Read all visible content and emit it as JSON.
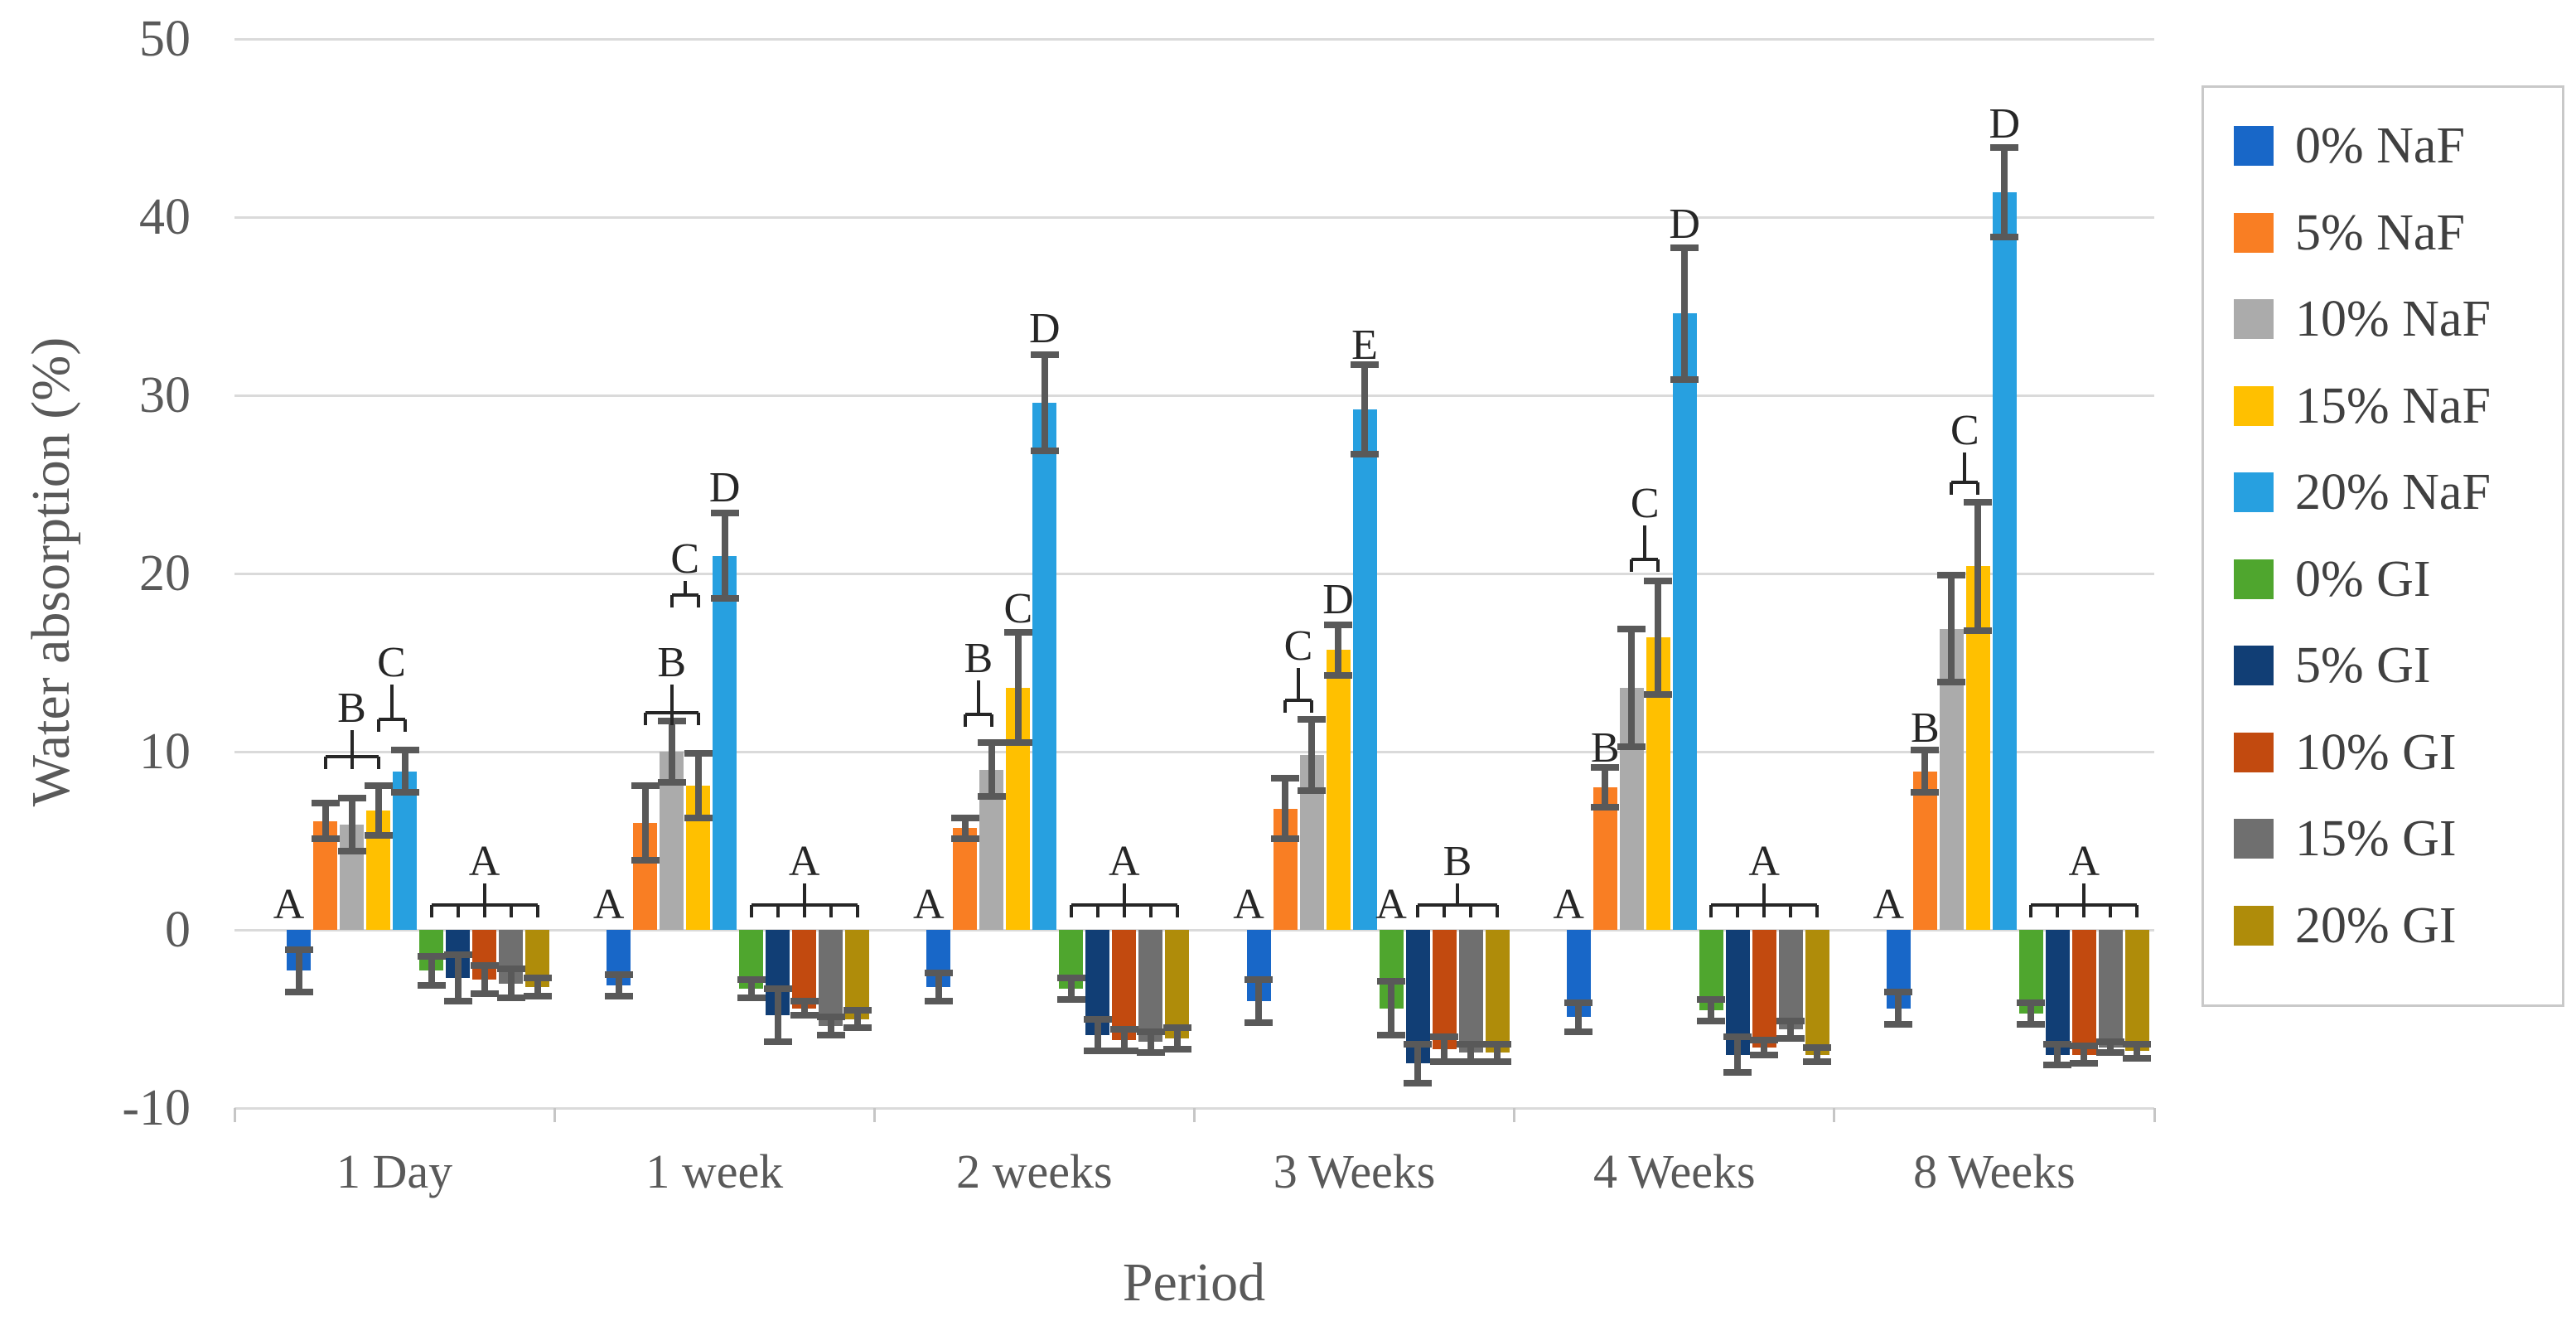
{
  "chart_data": {
    "type": "bar",
    "title": "",
    "xlabel": "Period",
    "ylabel": "Water absorption (%)",
    "ylim": [
      -10,
      50
    ],
    "y_ticks": [
      50,
      40,
      30,
      20,
      10,
      0,
      -10
    ],
    "grid": "horizontal",
    "legend_position": "right",
    "categories": [
      "1 Day",
      "1 week",
      "2 weeks",
      "3 Weeks",
      "4 Weeks",
      "8 Weeks"
    ],
    "series": [
      {
        "name": "0% NaF",
        "color": "#1867C8",
        "values": [
          -2.3,
          -3.1,
          -3.2,
          -4.0,
          -4.9,
          -4.4
        ],
        "errors": [
          1.2,
          0.6,
          0.8,
          1.2,
          0.8,
          0.9
        ]
      },
      {
        "name": "5% NaF",
        "color": "#F97E23",
        "values": [
          6.1,
          6.0,
          5.7,
          6.8,
          8.0,
          8.9
        ],
        "errors": [
          1.0,
          2.1,
          0.6,
          1.7,
          1.1,
          1.2
        ]
      },
      {
        "name": "10% NaF",
        "color": "#ABABAB",
        "values": [
          5.9,
          10.0,
          9.0,
          9.8,
          13.6,
          16.9
        ],
        "errors": [
          1.5,
          1.7,
          1.5,
          2.0,
          3.3,
          3.0
        ]
      },
      {
        "name": "15% NaF",
        "color": "#FFC000",
        "values": [
          6.7,
          8.1,
          13.6,
          15.7,
          16.4,
          20.4
        ],
        "errors": [
          1.4,
          1.8,
          3.1,
          1.4,
          3.2,
          3.6
        ]
      },
      {
        "name": "20% NaF",
        "color": "#27A0E0",
        "values": [
          8.9,
          21.0,
          29.6,
          29.2,
          34.6,
          41.4
        ],
        "errors": [
          1.2,
          2.4,
          2.7,
          2.5,
          3.7,
          2.5
        ]
      },
      {
        "name": "0% GI",
        "color": "#4FA62E",
        "values": [
          -2.3,
          -3.3,
          -3.3,
          -4.4,
          -4.5,
          -4.7
        ],
        "errors": [
          0.8,
          0.5,
          0.6,
          1.5,
          0.6,
          0.6
        ]
      },
      {
        "name": "5% GI",
        "color": "#113E75",
        "values": [
          -2.7,
          -4.8,
          -5.9,
          -7.5,
          -7.0,
          -7.0
        ],
        "errors": [
          1.3,
          1.5,
          0.9,
          1.1,
          1.0,
          0.6
        ]
      },
      {
        "name": "10% GI",
        "color": "#C24A0F",
        "values": [
          -2.8,
          -4.4,
          -6.2,
          -6.7,
          -6.6,
          -7.0
        ],
        "errors": [
          0.8,
          0.4,
          0.6,
          0.7,
          0.4,
          0.5
        ]
      },
      {
        "name": "15% GI",
        "color": "#6F6F6F",
        "values": [
          -3.0,
          -5.4,
          -6.3,
          -6.9,
          -5.6,
          -6.6
        ],
        "errors": [
          0.8,
          0.5,
          0.6,
          0.5,
          0.5,
          0.3
        ]
      },
      {
        "name": "20% GI",
        "color": "#AF8C0A",
        "values": [
          -3.2,
          -5.0,
          -6.1,
          -6.9,
          -7.0,
          -6.8
        ],
        "errors": [
          0.5,
          0.5,
          0.6,
          0.5,
          0.4,
          0.4
        ]
      }
    ],
    "annotations": [
      {
        "category": 0,
        "kind": "letter",
        "label": "A",
        "bar": 0,
        "letter_y": 1.4,
        "dx": -12
      },
      {
        "category": 0,
        "kind": "bracket",
        "label": "B",
        "bars": [
          1,
          3
        ],
        "bracket_y": 9.7,
        "letter_y": 12.4
      },
      {
        "category": 0,
        "kind": "bracket",
        "label": "C",
        "bars": [
          3,
          4
        ],
        "bracket_y": 11.8,
        "letter_y": 15.0
      },
      {
        "category": 0,
        "kind": "bracket",
        "label": "A",
        "bars": [
          5,
          9
        ],
        "bracket_y": 1.4,
        "letter_y": 3.8
      },
      {
        "category": 1,
        "kind": "letter",
        "label": "A",
        "bar": 0,
        "letter_y": 1.4,
        "dx": -12
      },
      {
        "category": 1,
        "kind": "bracket",
        "label": "B",
        "bars": [
          1,
          3
        ],
        "bracket_y": 12.2,
        "letter_y": 15.0
      },
      {
        "category": 1,
        "kind": "bracket",
        "label": "C",
        "bars": [
          2,
          3
        ],
        "bracket_y": 18.8,
        "letter_y": 20.8
      },
      {
        "category": 1,
        "kind": "letter",
        "label": "D",
        "bar": 4,
        "letter_y": 24.8
      },
      {
        "category": 1,
        "kind": "bracket",
        "label": "A",
        "bars": [
          5,
          9
        ],
        "bracket_y": 1.4,
        "letter_y": 3.8
      },
      {
        "category": 2,
        "kind": "letter",
        "label": "A",
        "bar": 0,
        "letter_y": 1.4,
        "dx": -12
      },
      {
        "category": 2,
        "kind": "bracket",
        "label": "B",
        "bars": [
          1,
          2
        ],
        "bracket_y": 12.1,
        "letter_y": 15.2
      },
      {
        "category": 2,
        "kind": "letter",
        "label": "C",
        "bar": 3,
        "letter_y": 18.0
      },
      {
        "category": 2,
        "kind": "letter",
        "label": "D",
        "bar": 4,
        "letter_y": 33.7
      },
      {
        "category": 2,
        "kind": "bracket",
        "label": "A",
        "bars": [
          5,
          9
        ],
        "bracket_y": 1.4,
        "letter_y": 3.8
      },
      {
        "category": 3,
        "kind": "letter",
        "label": "A",
        "bar": 0,
        "letter_y": 1.4,
        "dx": -12
      },
      {
        "category": 3,
        "kind": "bracket",
        "label": "C",
        "bars": [
          1,
          2
        ],
        "bracket_y": 12.9,
        "letter_y": 15.9
      },
      {
        "category": 3,
        "kind": "letter",
        "label": "D",
        "bar": 3,
        "letter_y": 18.5
      },
      {
        "category": 3,
        "kind": "letter",
        "label": "E",
        "bar": 4,
        "letter_y": 32.8
      },
      {
        "category": 3,
        "kind": "letter",
        "label": "A",
        "bar": 5,
        "letter_y": 1.4
      },
      {
        "category": 3,
        "kind": "bracket",
        "label": "B",
        "bars": [
          6,
          9
        ],
        "bracket_y": 1.4,
        "letter_y": 3.8
      },
      {
        "category": 4,
        "kind": "letter",
        "label": "A",
        "bar": 0,
        "letter_y": 1.4,
        "dx": -12
      },
      {
        "category": 4,
        "kind": "letter",
        "label": "B",
        "bar": 1,
        "letter_y": 10.2
      },
      {
        "category": 4,
        "kind": "bracket",
        "label": "C",
        "bars": [
          2,
          3
        ],
        "bracket_y": 20.8,
        "letter_y": 23.9
      },
      {
        "category": 4,
        "kind": "letter",
        "label": "D",
        "bar": 4,
        "letter_y": 39.6
      },
      {
        "category": 4,
        "kind": "bracket",
        "label": "A",
        "bars": [
          5,
          9
        ],
        "bracket_y": 1.4,
        "letter_y": 3.8
      },
      {
        "category": 5,
        "kind": "letter",
        "label": "A",
        "bar": 0,
        "letter_y": 1.4,
        "dx": -12
      },
      {
        "category": 5,
        "kind": "letter",
        "label": "B",
        "bar": 1,
        "letter_y": 11.3
      },
      {
        "category": 5,
        "kind": "bracket",
        "label": "C",
        "bars": [
          2,
          3
        ],
        "bracket_y": 25.1,
        "letter_y": 28.0
      },
      {
        "category": 5,
        "kind": "letter",
        "label": "D",
        "bar": 4,
        "letter_y": 45.2
      },
      {
        "category": 5,
        "kind": "bracket",
        "label": "A",
        "bars": [
          5,
          9
        ],
        "bracket_y": 1.4,
        "letter_y": 3.8
      }
    ],
    "colors": {
      "gridline": "#DADADA",
      "axis_text": "#595959",
      "error_bar": "#595959",
      "annotation": "#262626"
    }
  }
}
